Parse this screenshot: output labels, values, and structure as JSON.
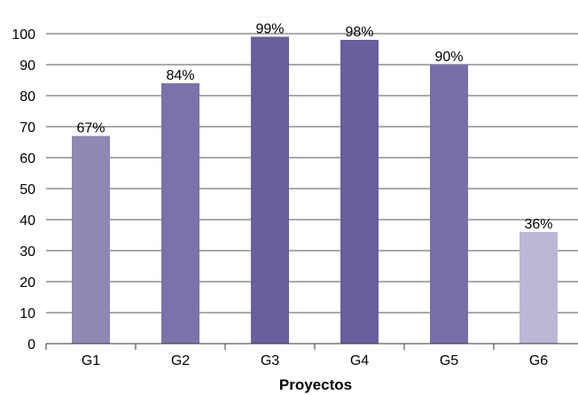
{
  "chart_data": {
    "type": "bar",
    "title": "",
    "xlabel": "Proyectos",
    "ylabel": "",
    "ylim": [
      0,
      100
    ],
    "yticks": [
      0,
      10,
      20,
      30,
      40,
      50,
      60,
      70,
      80,
      90,
      100
    ],
    "categories": [
      "G1",
      "G2",
      "G3",
      "G4",
      "G5",
      "G6"
    ],
    "values": [
      67,
      84,
      99,
      98,
      90,
      36
    ],
    "data_labels": [
      "67%",
      "84%",
      "99%",
      "98%",
      "90%",
      "36%"
    ],
    "bar_colors": [
      "#8f87b4",
      "#7c72a9",
      "#6a5e9c",
      "#6a5e9c",
      "#786fa8",
      "#bbb7d5"
    ],
    "grid": true,
    "legend": "none"
  }
}
